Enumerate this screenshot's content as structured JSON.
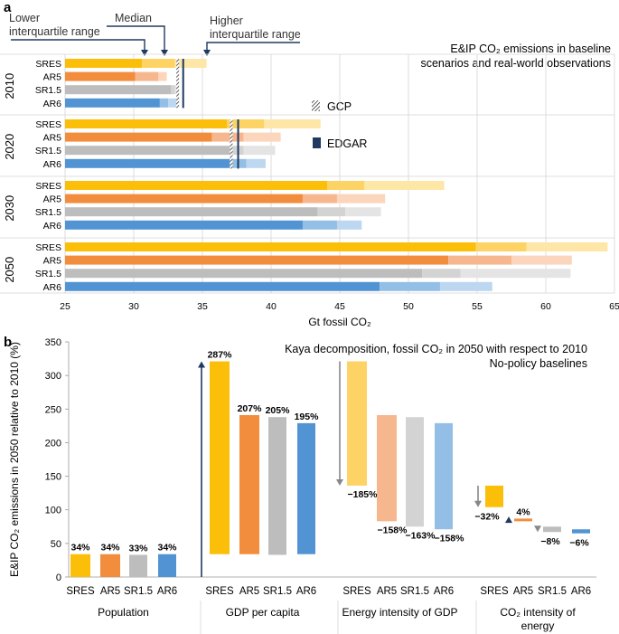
{
  "colors": {
    "SRES": [
      "#fbbf0a",
      "#fdd366",
      "#fee6a6"
    ],
    "AR5": [
      "#f28d3e",
      "#f7b78e",
      "#fbd6bd"
    ],
    "SR1.5": [
      "#bdbdbd",
      "#d3d3d3",
      "#e4e4e4"
    ],
    "AR6": [
      "#5294d3",
      "#93bfe6",
      "#bcd7ef"
    ],
    "edgar": "#1f3a5f",
    "arrow": "#1f3a5f",
    "grey_arrow": "#888888",
    "grid": "#d4d4d4"
  },
  "panel_a": {
    "label": "a",
    "annotations": {
      "lower_iqr": [
        "Lower",
        "interquartile range"
      ],
      "median": "Median",
      "higher_iqr": [
        "Higher",
        "interquartile range"
      ]
    },
    "title_lines": [
      "E&IP CO₂ emissions in baseline",
      "scenarios and real-world observations"
    ],
    "legend": {
      "gcp": "GCP",
      "edgar": "EDGAR"
    }
  },
  "panel_b": {
    "label": "b",
    "title_lines": [
      "Kaya decomposition, fossil CO₂ in 2050 with respect to 2010",
      "No-policy baselines"
    ]
  },
  "chart_data": [
    {
      "type": "bar",
      "orientation": "horizontal",
      "xlabel": "Gt fossil CO₂",
      "xlim": [
        25,
        65
      ],
      "xticks": [
        "25",
        "30",
        "35",
        "40",
        "45",
        "50",
        "55",
        "60",
        "65"
      ],
      "note": "Each bar shows lower quartile, median and upper quartile (q1, med, q3) of baseline scenario emissions",
      "groups": [
        {
          "year": "2010",
          "rows": [
            {
              "name": "SRES",
              "q1": 30.6,
              "med": 33.0,
              "q3": 35.3
            },
            {
              "name": "AR5",
              "q1": 30.1,
              "med": 31.8,
              "q3": 32.4
            },
            {
              "name": "SR1.5",
              "q1": 32.7,
              "med": 33.0,
              "q3": 33.2
            },
            {
              "name": "AR6",
              "q1": 31.9,
              "med": 32.5,
              "q3": 33.3
            }
          ],
          "gcp": 33.2,
          "edgar": 33.6
        },
        {
          "year": "2020",
          "rows": [
            {
              "name": "SRES",
              "q1": 36.8,
              "med": 39.5,
              "q3": 43.6
            },
            {
              "name": "AR5",
              "q1": 35.7,
              "med": 38.0,
              "q3": 40.7
            },
            {
              "name": "SR1.5",
              "q1": 37.0,
              "med": 38.0,
              "q3": 40.3
            },
            {
              "name": "AR6",
              "q1": 37.0,
              "med": 38.2,
              "q3": 39.6
            }
          ],
          "gcp": 37.1,
          "edgar": 37.6
        },
        {
          "year": "2030",
          "rows": [
            {
              "name": "SRES",
              "q1": 44.1,
              "med": 46.8,
              "q3": 52.6
            },
            {
              "name": "AR5",
              "q1": 42.3,
              "med": 44.8,
              "q3": 48.3
            },
            {
              "name": "SR1.5",
              "q1": 43.4,
              "med": 45.4,
              "q3": 48.0
            },
            {
              "name": "AR6",
              "q1": 42.3,
              "med": 44.8,
              "q3": 46.6
            }
          ]
        },
        {
          "year": "2050",
          "rows": [
            {
              "name": "SRES",
              "q1": 54.9,
              "med": 58.6,
              "q3": 64.5
            },
            {
              "name": "AR5",
              "q1": 52.9,
              "med": 57.5,
              "q3": 61.9
            },
            {
              "name": "SR1.5",
              "q1": 51.0,
              "med": 53.8,
              "q3": 61.8
            },
            {
              "name": "AR6",
              "q1": 47.9,
              "med": 52.3,
              "q3": 56.1
            }
          ]
        }
      ]
    },
    {
      "type": "bar",
      "subtype": "waterfall",
      "ylabel": "E&IP CO₂ emissions in 2050 relative to 2010 (%)",
      "ylim": [
        0,
        350
      ],
      "yticks": [
        "0",
        "50",
        "100",
        "150",
        "200",
        "250",
        "300",
        "350"
      ],
      "scenarios": [
        "SRES",
        "AR5",
        "SR1.5",
        "AR6"
      ],
      "factors": [
        {
          "name": "Population",
          "bars": [
            {
              "label": "34%",
              "bottom": 0,
              "top": 34
            },
            {
              "label": "34%",
              "bottom": 0,
              "top": 34
            },
            {
              "label": "33%",
              "bottom": 0,
              "top": 33
            },
            {
              "label": "34%",
              "bottom": 0,
              "top": 34
            }
          ]
        },
        {
          "name": "GDP per capita",
          "bars": [
            {
              "label": "287%",
              "bottom": 34,
              "top": 321
            },
            {
              "label": "207%",
              "bottom": 34,
              "top": 241
            },
            {
              "label": "205%",
              "bottom": 33,
              "top": 238
            },
            {
              "label": "195%",
              "bottom": 34,
              "top": 229
            }
          ]
        },
        {
          "name": "Energy intensity of GDP",
          "bars": [
            {
              "label": "−185%",
              "bottom": 136,
              "top": 321
            },
            {
              "label": "−158%",
              "bottom": 83,
              "top": 241
            },
            {
              "label": "−163%",
              "bottom": 75,
              "top": 238
            },
            {
              "label": "−158%",
              "bottom": 71,
              "top": 229
            }
          ]
        },
        {
          "name": "CO₂ intensity of energy",
          "name_lines": [
            "CO₂ intensity of",
            "energy"
          ],
          "bars": [
            {
              "label": "−32%",
              "bottom": 104,
              "top": 136
            },
            {
              "label": "4%",
              "bottom": 83,
              "top": 87
            },
            {
              "label": "−8%",
              "bottom": 67,
              "top": 75
            },
            {
              "label": "−6%",
              "bottom": 65,
              "top": 71
            }
          ]
        }
      ]
    }
  ]
}
